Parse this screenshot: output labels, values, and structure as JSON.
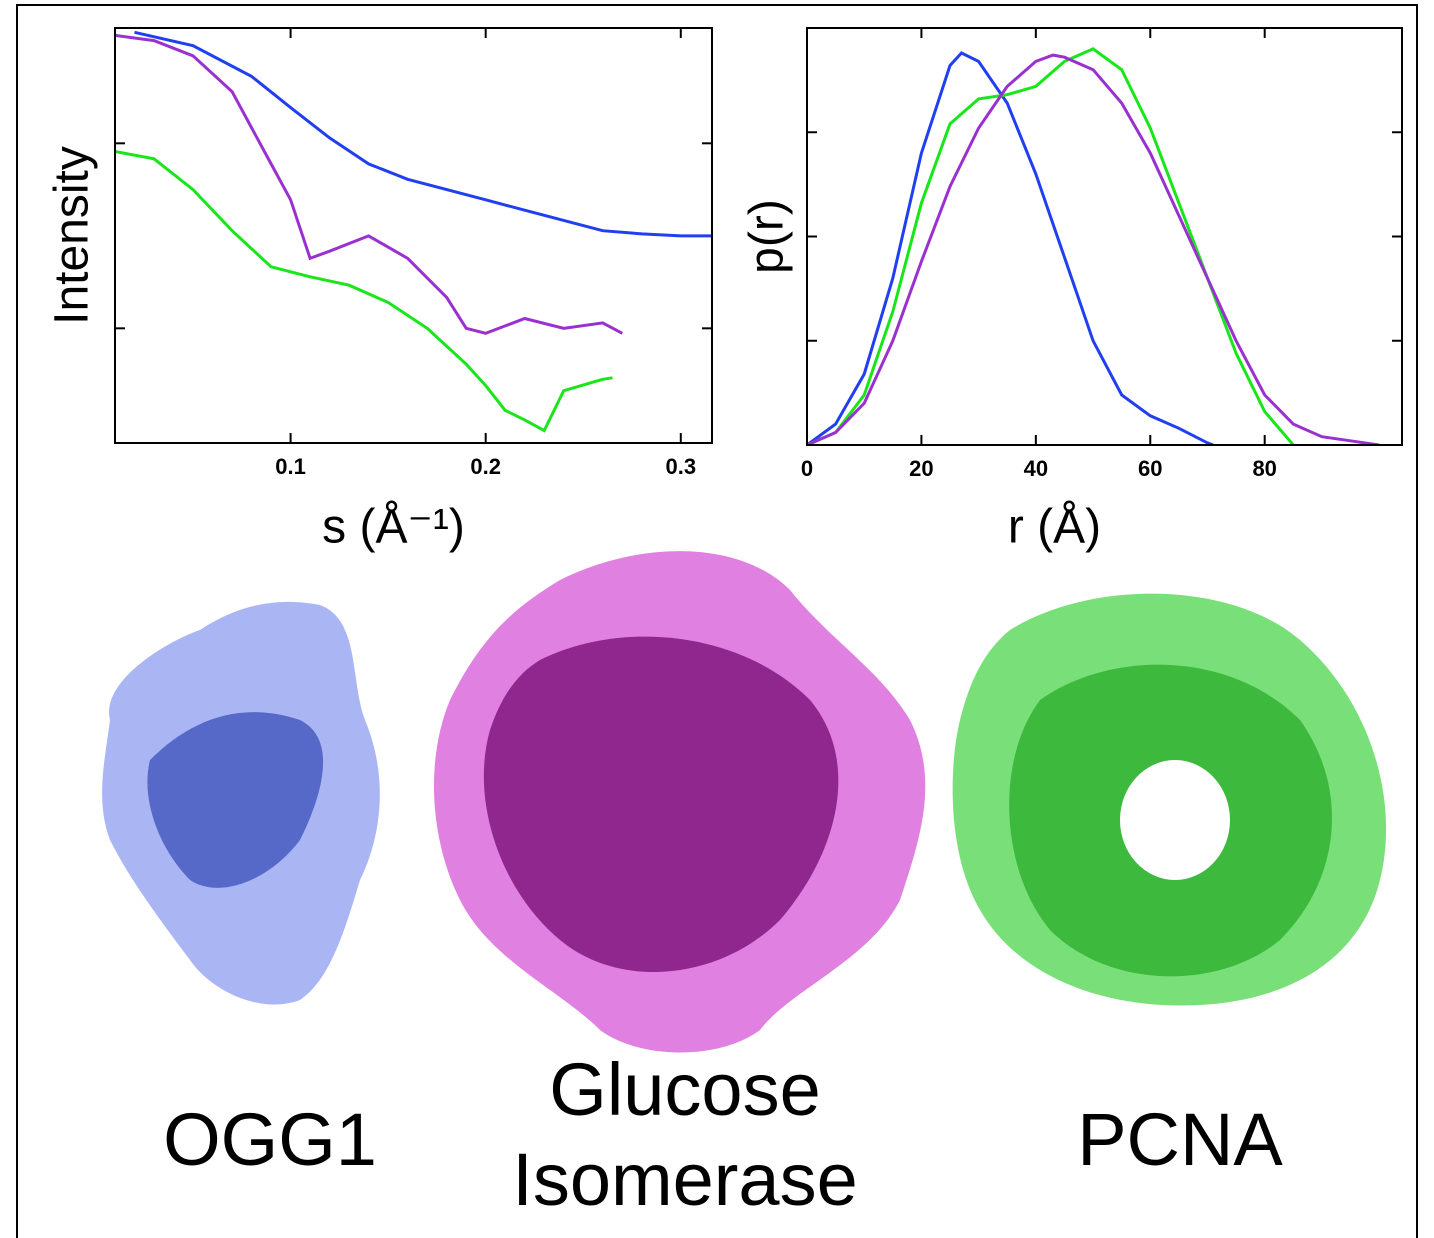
{
  "chart_data": [
    {
      "type": "line",
      "ylabel": "Intensity",
      "xlabel": "s (Å⁻¹)",
      "ylog": true,
      "ytick_labels": false,
      "xlim": [
        0.01,
        0.316
      ],
      "ylim": [
        0.024,
        4.2
      ],
      "xticks": [
        0.1,
        0.2,
        0.3
      ],
      "yticks": [
        0.1,
        1
      ],
      "series": [
        {
          "color": "#1f3ff0",
          "x": [
            0.02,
            0.05,
            0.08,
            0.1,
            0.12,
            0.14,
            0.16,
            0.18,
            0.2,
            0.22,
            0.24,
            0.26,
            0.28,
            0.3,
            0.316
          ],
          "values": [
            3.98,
            3.37,
            2.3,
            1.56,
            1.07,
            0.774,
            0.639,
            0.562,
            0.495,
            0.435,
            0.383,
            0.337,
            0.324,
            0.316,
            0.316
          ]
        },
        {
          "color": "#9b30d0",
          "x": [
            0.01,
            0.03,
            0.05,
            0.07,
            0.09,
            0.1,
            0.11,
            0.12,
            0.14,
            0.16,
            0.18,
            0.19,
            0.2,
            0.22,
            0.24,
            0.26,
            0.27
          ],
          "values": [
            3.83,
            3.59,
            2.97,
            1.9,
            0.774,
            0.495,
            0.239,
            0.261,
            0.316,
            0.239,
            0.147,
            0.1,
            0.094,
            0.113,
            0.1,
            0.107,
            0.094
          ]
        },
        {
          "color": "#19e619",
          "x": [
            0.01,
            0.03,
            0.05,
            0.07,
            0.09,
            0.11,
            0.13,
            0.15,
            0.17,
            0.19,
            0.2,
            0.21,
            0.22,
            0.23,
            0.24,
            0.26,
            0.265
          ],
          "values": [
            0.903,
            0.825,
            0.562,
            0.337,
            0.215,
            0.19,
            0.171,
            0.138,
            0.1,
            0.064,
            0.049,
            0.036,
            0.032,
            0.028,
            0.046,
            0.053,
            0.054
          ]
        }
      ]
    },
    {
      "type": "line",
      "ylabel": "p(r)",
      "xlabel": "r (Å)",
      "ylog": false,
      "ytick_labels": false,
      "xlim": [
        0,
        104
      ],
      "ylim": [
        0,
        1
      ],
      "xticks": [
        0,
        20,
        40,
        60,
        80
      ],
      "yticks": [
        0.25,
        0.5,
        0.75
      ],
      "series": [
        {
          "color": "#1f3ff0",
          "x": [
            0,
            5,
            10,
            15,
            20,
            25,
            27,
            30,
            35,
            40,
            45,
            50,
            55,
            60,
            65,
            70,
            71
          ],
          "values": [
            0,
            0.05,
            0.17,
            0.4,
            0.7,
            0.91,
            0.94,
            0.92,
            0.82,
            0.65,
            0.45,
            0.25,
            0.12,
            0.07,
            0.04,
            0.005,
            0
          ]
        },
        {
          "color": "#19e619",
          "x": [
            0,
            5,
            10,
            15,
            20,
            25,
            30,
            35,
            40,
            45,
            50,
            55,
            60,
            65,
            70,
            75,
            80,
            85
          ],
          "values": [
            0,
            0.03,
            0.12,
            0.32,
            0.58,
            0.77,
            0.83,
            0.84,
            0.86,
            0.92,
            0.95,
            0.9,
            0.76,
            0.58,
            0.4,
            0.22,
            0.08,
            0
          ]
        },
        {
          "color": "#9b30d0",
          "x": [
            0,
            5,
            10,
            15,
            20,
            25,
            30,
            35,
            40,
            43,
            45,
            50,
            55,
            60,
            65,
            70,
            75,
            80,
            85,
            90,
            95,
            100
          ],
          "values": [
            0,
            0.03,
            0.1,
            0.25,
            0.44,
            0.62,
            0.76,
            0.86,
            0.92,
            0.935,
            0.93,
            0.9,
            0.82,
            0.7,
            0.55,
            0.4,
            0.25,
            0.12,
            0.05,
            0.02,
            0.01,
            0
          ]
        }
      ]
    }
  ],
  "structures": [
    {
      "label": "OGG1"
    },
    {
      "label": "Glucose Isomerase"
    },
    {
      "label": "PCNA"
    }
  ]
}
